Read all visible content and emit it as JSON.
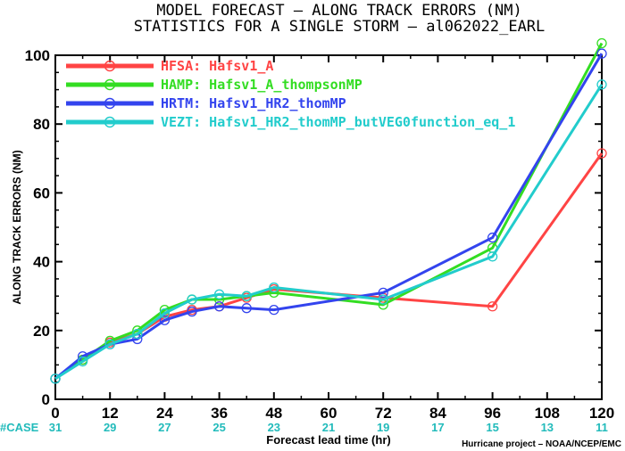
{
  "chart_data": {
    "type": "line",
    "title": "MODEL FORECAST – ALONG TRACK ERRORS (NM)",
    "subtitle": "STATISTICS FOR A SINGLE STORM – al062022_EARL",
    "xlabel": "Forecast lead time (hr)",
    "ylabel": "ALONG TRACK ERRORS (NM)",
    "xlim": [
      0,
      120
    ],
    "ylim": [
      0,
      100
    ],
    "x_ticks": [
      "0",
      "12",
      "24",
      "36",
      "48",
      "60",
      "72",
      "84",
      "96",
      "108",
      "120"
    ],
    "y_ticks": [
      "0",
      "20",
      "40",
      "60",
      "80",
      "100"
    ],
    "case_label": "#CASE",
    "case_counts": [
      "31",
      "29",
      "27",
      "25",
      "23",
      "21",
      "19",
      "17",
      "15",
      "13",
      "11"
    ],
    "legend_position": "top-left",
    "grid": false,
    "series": [
      {
        "name": "HFSA: Hafsv1_A",
        "color": "#ff4444",
        "points": [
          [
            0,
            6
          ],
          [
            6,
            11.5
          ],
          [
            12,
            16.5
          ],
          [
            18,
            19
          ],
          [
            24,
            24
          ],
          [
            30,
            26
          ],
          [
            36,
            27
          ],
          [
            42,
            29.5
          ],
          [
            48,
            32
          ],
          [
            72,
            29.5
          ],
          [
            96,
            27
          ],
          [
            120,
            71.5
          ]
        ]
      },
      {
        "name": "HAMP: Hafsv1_A_thompsonMP",
        "color": "#33dd22",
        "points": [
          [
            0,
            6
          ],
          [
            6,
            11.5
          ],
          [
            12,
            17
          ],
          [
            18,
            20
          ],
          [
            24,
            26
          ],
          [
            30,
            29
          ],
          [
            36,
            29
          ],
          [
            42,
            30
          ],
          [
            48,
            31
          ],
          [
            72,
            27.5
          ],
          [
            96,
            44
          ],
          [
            120,
            103.5
          ]
        ]
      },
      {
        "name": "HRTM: Hafsv1_HR2_thomMP",
        "color": "#3344ee",
        "points": [
          [
            0,
            6
          ],
          [
            6,
            12.5
          ],
          [
            12,
            16
          ],
          [
            18,
            17.5
          ],
          [
            24,
            23
          ],
          [
            30,
            25.5
          ],
          [
            36,
            27
          ],
          [
            42,
            26.5
          ],
          [
            48,
            26
          ],
          [
            72,
            31
          ],
          [
            96,
            47
          ],
          [
            120,
            100.5
          ]
        ]
      },
      {
        "name": "VEZT: Hafsv1_HR2_thomMP_butVEG0function_eq_1",
        "color": "#22cccc",
        "points": [
          [
            0,
            6
          ],
          [
            6,
            11
          ],
          [
            12,
            16
          ],
          [
            18,
            19
          ],
          [
            24,
            25
          ],
          [
            30,
            29
          ],
          [
            36,
            30.5
          ],
          [
            42,
            30
          ],
          [
            48,
            32.5
          ],
          [
            72,
            29
          ],
          [
            96,
            41.5
          ],
          [
            120,
            91.5
          ]
        ]
      }
    ]
  },
  "credit": "Hurricane project – NOAA/NCEP/EMC",
  "colors": {
    "case_color": "#22bbbb",
    "axis": "#000000",
    "background": "#ffffff"
  }
}
